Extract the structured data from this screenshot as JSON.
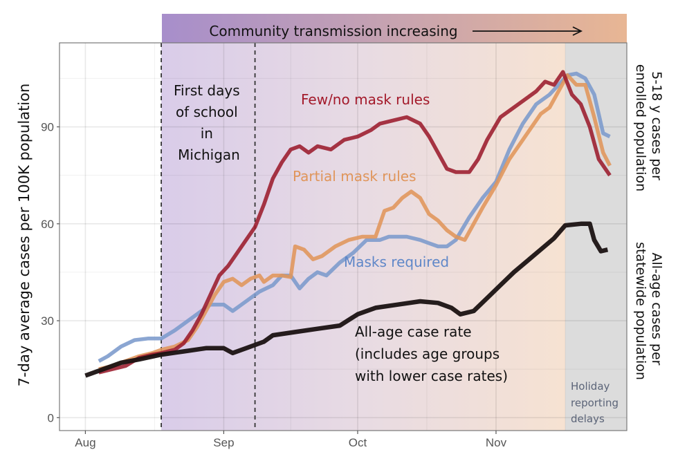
{
  "chart_data": {
    "type": "line",
    "banner": "Community transmission increasing",
    "ylabel_left": "7-day average cases per 100K population",
    "ylabel_right_top": [
      "5-18 y cases per",
      "enrolled population"
    ],
    "ylabel_right_bottom": [
      "All-age cases per",
      "statewide population"
    ],
    "ylim": [
      -4,
      116
    ],
    "yticks": [
      0,
      30,
      60,
      90
    ],
    "ytick_labels": [
      "0",
      "30",
      "60",
      "90"
    ],
    "xlim_days": [
      -5.8,
      121.3
    ],
    "x_unit": "days since Aug 1",
    "xticks": [
      0,
      31,
      61,
      92
    ],
    "xtick_labels": [
      "Aug",
      "Sep",
      "Oct",
      "Nov"
    ],
    "grid": true,
    "school_start_window_days": [
      17,
      38
    ],
    "school_annotation": [
      "First days",
      "of school",
      "in",
      "Michigan"
    ],
    "holiday_region_start_day": 107.5,
    "holiday_annotation": [
      "Holiday",
      "reporting",
      "delays"
    ],
    "series": [
      {
        "name": "Masks required",
        "label": "Masks required",
        "color": "#7b9acc",
        "points": [
          [
            3,
            17.5
          ],
          [
            5,
            19
          ],
          [
            8,
            22
          ],
          [
            11,
            24
          ],
          [
            14,
            24.5
          ],
          [
            17,
            24.5
          ],
          [
            20,
            27
          ],
          [
            23,
            30
          ],
          [
            26,
            33
          ],
          [
            28,
            35
          ],
          [
            31,
            35
          ],
          [
            33,
            33
          ],
          [
            35,
            35
          ],
          [
            37,
            37
          ],
          [
            39,
            39
          ],
          [
            42,
            41
          ],
          [
            44,
            44
          ],
          [
            46,
            44
          ],
          [
            48,
            40
          ],
          [
            50,
            43
          ],
          [
            52,
            45
          ],
          [
            54,
            44
          ],
          [
            57,
            48
          ],
          [
            60,
            51
          ],
          [
            63,
            55
          ],
          [
            66,
            55
          ],
          [
            68,
            56
          ],
          [
            72,
            56
          ],
          [
            75,
            55
          ],
          [
            77,
            54
          ],
          [
            79,
            53
          ],
          [
            81,
            53
          ],
          [
            83,
            55
          ],
          [
            86,
            62
          ],
          [
            89,
            68
          ],
          [
            92,
            73
          ],
          [
            95,
            83
          ],
          [
            98,
            91
          ],
          [
            101,
            97
          ],
          [
            104,
            100
          ],
          [
            106,
            103
          ],
          [
            108,
            106
          ],
          [
            110,
            106.5
          ],
          [
            112,
            105
          ],
          [
            114,
            100
          ],
          [
            116,
            88
          ],
          [
            117.5,
            87
          ]
        ]
      },
      {
        "name": "Partial mask rules",
        "label": "Partial mask rules",
        "color": "#e0955a",
        "points": [
          [
            3,
            15
          ],
          [
            6,
            16
          ],
          [
            9,
            17.5
          ],
          [
            12,
            19
          ],
          [
            15,
            20
          ],
          [
            17,
            21
          ],
          [
            20,
            22
          ],
          [
            23,
            24
          ],
          [
            25,
            28
          ],
          [
            27,
            33
          ],
          [
            29,
            38
          ],
          [
            31,
            42
          ],
          [
            33,
            43
          ],
          [
            35,
            41
          ],
          [
            37,
            43
          ],
          [
            39,
            44
          ],
          [
            40,
            42
          ],
          [
            42,
            44
          ],
          [
            44,
            44
          ],
          [
            46,
            43.5
          ],
          [
            47,
            53
          ],
          [
            49,
            52
          ],
          [
            51,
            49
          ],
          [
            53,
            50
          ],
          [
            56,
            53
          ],
          [
            59,
            55
          ],
          [
            62,
            56
          ],
          [
            65,
            56
          ],
          [
            67,
            64
          ],
          [
            69,
            65
          ],
          [
            71,
            68
          ],
          [
            73,
            70
          ],
          [
            75,
            68
          ],
          [
            77,
            63
          ],
          [
            79,
            61
          ],
          [
            81,
            58
          ],
          [
            83,
            56
          ],
          [
            85,
            55
          ],
          [
            87,
            60
          ],
          [
            89,
            65
          ],
          [
            92,
            72
          ],
          [
            95,
            80
          ],
          [
            98,
            86
          ],
          [
            100,
            90
          ],
          [
            102,
            94
          ],
          [
            104,
            96
          ],
          [
            106,
            101
          ],
          [
            108,
            106
          ],
          [
            110,
            103
          ],
          [
            112,
            103
          ],
          [
            114,
            93
          ],
          [
            116,
            82
          ],
          [
            117.5,
            78
          ]
        ]
      },
      {
        "name": "Few/no mask rules",
        "label": "Few/no mask rules",
        "color": "#9b1b2c",
        "points": [
          [
            3,
            14
          ],
          [
            6,
            15
          ],
          [
            9,
            16
          ],
          [
            12,
            18.5
          ],
          [
            15,
            19.5
          ],
          [
            17,
            20
          ],
          [
            20,
            21
          ],
          [
            22,
            23
          ],
          [
            24,
            27
          ],
          [
            26,
            32
          ],
          [
            28,
            38
          ],
          [
            30,
            44
          ],
          [
            32,
            47
          ],
          [
            34,
            51
          ],
          [
            36,
            55
          ],
          [
            38,
            59
          ],
          [
            40,
            66
          ],
          [
            42,
            74
          ],
          [
            44,
            79
          ],
          [
            46,
            83
          ],
          [
            48,
            84
          ],
          [
            50,
            82
          ],
          [
            52,
            84
          ],
          [
            55,
            83
          ],
          [
            58,
            86
          ],
          [
            61,
            87
          ],
          [
            64,
            89
          ],
          [
            66,
            91
          ],
          [
            69,
            92
          ],
          [
            72,
            93
          ],
          [
            75,
            91
          ],
          [
            77,
            87
          ],
          [
            79,
            82
          ],
          [
            81,
            77
          ],
          [
            83,
            76
          ],
          [
            86,
            76
          ],
          [
            88,
            80
          ],
          [
            90,
            86
          ],
          [
            93,
            93
          ],
          [
            96,
            96
          ],
          [
            99,
            99
          ],
          [
            101,
            101
          ],
          [
            103,
            104
          ],
          [
            105,
            103
          ],
          [
            107,
            107
          ],
          [
            109,
            100
          ],
          [
            111,
            97
          ],
          [
            113,
            90
          ],
          [
            115,
            80
          ],
          [
            117.5,
            75
          ]
        ]
      },
      {
        "name": "All-age case rate",
        "label": [
          "All-age case rate",
          "(includes age groups",
          "with lower case rates)"
        ],
        "color": "#1a1212",
        "points": [
          [
            0,
            13
          ],
          [
            4,
            15
          ],
          [
            8,
            17
          ],
          [
            12,
            18
          ],
          [
            17,
            19.5
          ],
          [
            22,
            20.5
          ],
          [
            27,
            21.5
          ],
          [
            31,
            21.5
          ],
          [
            33,
            20
          ],
          [
            36,
            21.5
          ],
          [
            40,
            23.5
          ],
          [
            42,
            25.5
          ],
          [
            47,
            26.5
          ],
          [
            52,
            27.5
          ],
          [
            57,
            28.5
          ],
          [
            61,
            32
          ],
          [
            65,
            34
          ],
          [
            70,
            35
          ],
          [
            75,
            36
          ],
          [
            79,
            35.5
          ],
          [
            82,
            34
          ],
          [
            84,
            32
          ],
          [
            87,
            33
          ],
          [
            90,
            37
          ],
          [
            93,
            41
          ],
          [
            96,
            45
          ],
          [
            99,
            48.5
          ],
          [
            102,
            52
          ],
          [
            105,
            55.5
          ],
          [
            107.5,
            59.5
          ],
          [
            111,
            60
          ],
          [
            113,
            60
          ],
          [
            114,
            55
          ],
          [
            115.5,
            51.5
          ],
          [
            117,
            52
          ]
        ]
      }
    ]
  }
}
